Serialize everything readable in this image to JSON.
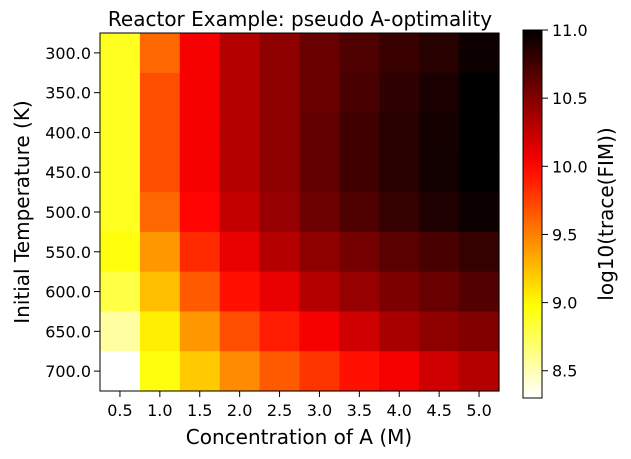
{
  "chart_data": {
    "type": "heatmap",
    "title": "Reactor Example: pseudo A-optimality",
    "xlabel": "Concentration of A (M)",
    "ylabel": "Initial Temperature (K)",
    "x_categories": [
      "0.5",
      "1.0",
      "1.5",
      "2.0",
      "2.5",
      "3.0",
      "3.5",
      "4.0",
      "4.5",
      "5.0"
    ],
    "y_categories": [
      "300.0",
      "350.0",
      "400.0",
      "450.0",
      "500.0",
      "550.0",
      "600.0",
      "650.0",
      "700.0"
    ],
    "values": [
      [
        8.9,
        9.6,
        10.05,
        10.3,
        10.45,
        10.6,
        10.7,
        10.78,
        10.85,
        10.95
      ],
      [
        8.9,
        9.7,
        10.05,
        10.3,
        10.45,
        10.6,
        10.72,
        10.82,
        10.9,
        11.0
      ],
      [
        8.9,
        9.7,
        10.05,
        10.3,
        10.45,
        10.62,
        10.75,
        10.85,
        10.92,
        11.0
      ],
      [
        8.9,
        9.7,
        10.05,
        10.3,
        10.45,
        10.62,
        10.75,
        10.85,
        10.93,
        11.0
      ],
      [
        8.9,
        9.6,
        10.0,
        10.25,
        10.42,
        10.58,
        10.7,
        10.8,
        10.88,
        10.95
      ],
      [
        8.95,
        9.4,
        9.85,
        10.1,
        10.3,
        10.45,
        10.55,
        10.65,
        10.72,
        10.8
      ],
      [
        8.8,
        9.25,
        9.65,
        9.95,
        10.1,
        10.3,
        10.42,
        10.52,
        10.6,
        10.68
      ],
      [
        8.55,
        9.05,
        9.4,
        9.7,
        9.9,
        10.05,
        10.2,
        10.35,
        10.45,
        10.5
      ],
      [
        8.3,
        8.95,
        9.2,
        9.45,
        9.65,
        9.8,
        9.95,
        10.05,
        10.2,
        10.3
      ]
    ],
    "colormap": "hot_r",
    "colorbar": {
      "label": "log10(trace(FIM))",
      "min": 8.3,
      "max": 11.0,
      "ticks": [
        "8.5",
        "9.0",
        "9.5",
        "10.0",
        "10.5",
        "11.0"
      ]
    }
  }
}
